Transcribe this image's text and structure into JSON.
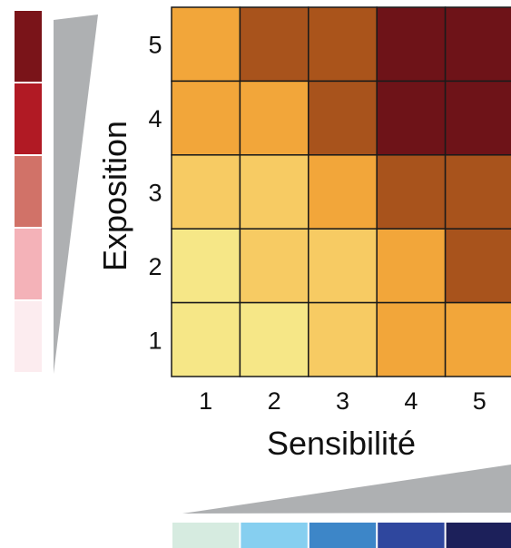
{
  "chart_data": {
    "type": "heatmap",
    "title": "",
    "xlabel": "Sensibilité",
    "ylabel": "Exposition",
    "x_categories": [
      "1",
      "2",
      "3",
      "4",
      "5"
    ],
    "y_categories": [
      "1",
      "2",
      "3",
      "4",
      "5"
    ],
    "matrix_rows_top_to_bottom": [
      [
        "#f2a63a",
        "#a8531c",
        "#aa541b",
        "#6e1318",
        "#6e1318"
      ],
      [
        "#f2a63a",
        "#f2a63a",
        "#a8531c",
        "#6e1318",
        "#6e1318"
      ],
      [
        "#f7cb63",
        "#f7cb63",
        "#f2a63a",
        "#a8531c",
        "#a8531c"
      ],
      [
        "#f6e787",
        "#f7cb63",
        "#f7cb63",
        "#f2a63a",
        "#a8531c"
      ],
      [
        "#f6e787",
        "#f6e787",
        "#f7cb63",
        "#f2a63a",
        "#f2a63a"
      ]
    ],
    "left_scale_colors_top_to_bottom": [
      "#7a1419",
      "#b11a24",
      "#d17268",
      "#f4b2b8",
      "#fcecef"
    ],
    "bottom_scale_colors_left_to_right": [
      "#d6ebe0",
      "#86cff0",
      "#3d86c8",
      "#2f479e",
      "#1c205a"
    ],
    "grid": true,
    "legend": "none"
  }
}
